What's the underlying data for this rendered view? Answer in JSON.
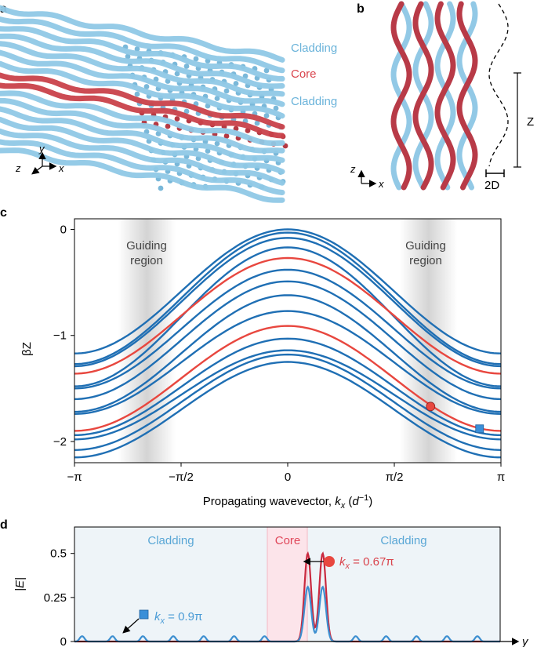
{
  "panel_a": {
    "label": "a",
    "layers": [
      "Cladding",
      "Core",
      "Cladding"
    ],
    "axes": {
      "y": "y",
      "z": "z",
      "x": "x"
    }
  },
  "panel_b": {
    "label": "b",
    "period_label": "Z",
    "pitch_label": "2D",
    "axes": {
      "z": "z",
      "x": "x"
    }
  },
  "panel_c": {
    "label": "c",
    "guiding_region_line1": "Guiding",
    "guiding_region_line2": "region"
  },
  "panel_d": {
    "label": "d",
    "region_left": "Cladding",
    "region_core": "Core",
    "region_right": "Cladding",
    "annot_red": "k_x = 0.67π",
    "annot_red_k": "k",
    "annot_red_sub": "x",
    "annot_red_val": " = 0.67π",
    "annot_blue_k": "k",
    "annot_blue_sub": "x",
    "annot_blue_val": " = 0.9π"
  },
  "colors": {
    "blue": "#1f6fb4",
    "red": "#e8473f",
    "cladding": "#7fbfe0",
    "core": "#c9414a"
  },
  "chart_data": [
    {
      "type": "line",
      "panel": "c",
      "title": "",
      "xlabel": "Propagating wavevector, k_x (d^-1)",
      "xlabel_parts": {
        "main": "Propagating wavevector, ",
        "k": "k",
        "sub": "x",
        "paren_open": " (",
        "d": "d",
        "sup": "−1",
        "paren_close": ")"
      },
      "ylabel": "βZ",
      "xlim": [
        -3.14159,
        3.14159
      ],
      "ylim": [
        -2.2,
        0.1
      ],
      "xticks": [
        -3.14159,
        -1.5708,
        0,
        1.5708,
        3.14159
      ],
      "xticklabels": [
        "−π",
        "−π/2",
        "0",
        "π/2",
        "π"
      ],
      "yticks": [
        0,
        -1,
        -2
      ],
      "yticklabels": [
        "0",
        "−1",
        "−2"
      ],
      "guiding_regions": [
        [
          -2.5,
          -1.65
        ],
        [
          1.65,
          2.5
        ]
      ],
      "series": [
        {
          "name": "band",
          "color": "blue",
          "center": 0.0,
          "edge": -1.17
        },
        {
          "name": "band",
          "color": "blue",
          "center": -0.03,
          "edge": -1.27
        },
        {
          "name": "band",
          "color": "blue",
          "center": -0.08,
          "edge": -1.29
        },
        {
          "name": "band",
          "color": "blue",
          "center": -0.17,
          "edge": -1.48
        },
        {
          "name": "core",
          "color": "red",
          "center": -0.27,
          "edge": -1.36
        },
        {
          "name": "band",
          "color": "blue",
          "center": -0.38,
          "edge": -1.5
        },
        {
          "name": "band",
          "color": "blue",
          "center": -0.49,
          "edge": -1.6
        },
        {
          "name": "band",
          "color": "blue",
          "center": -0.62,
          "edge": -1.72
        },
        {
          "name": "band",
          "color": "blue",
          "center": -0.77,
          "edge": -1.74
        },
        {
          "name": "core",
          "color": "red",
          "center": -0.91,
          "edge": -1.9
        },
        {
          "name": "band",
          "color": "blue",
          "center": -1.03,
          "edge": -1.94
        },
        {
          "name": "band",
          "color": "blue",
          "center": -1.14,
          "edge": -1.98
        },
        {
          "name": "band",
          "color": "blue",
          "center": -1.18,
          "edge": -2.08
        },
        {
          "name": "band",
          "color": "blue",
          "center": -1.25,
          "edge": -2.15
        }
      ],
      "markers": [
        {
          "shape": "circle",
          "color": "red",
          "x": 2.105,
          "y": -1.67
        },
        {
          "shape": "square",
          "color": "blue",
          "x": 2.827,
          "y": -1.88
        }
      ]
    },
    {
      "type": "line",
      "panel": "d",
      "xlabel": "y",
      "ylabel": "|E|",
      "ylim": [
        0,
        0.65
      ],
      "yticks": [
        0,
        0.25,
        0.5
      ],
      "yticklabels": [
        "0",
        "0.25",
        "0.5"
      ],
      "core_span": [
        0.505,
        0.6
      ],
      "series": [
        {
          "name": "k_x = 0.67π",
          "color": "red",
          "peaks": [
            [
              0.548,
              0.5
            ],
            [
              0.583,
              0.5
            ]
          ]
        },
        {
          "name": "k_x = 0.9π",
          "color": "blue",
          "peaks": [
            [
              0.548,
              0.31
            ],
            [
              0.583,
              0.31
            ]
          ],
          "ripple_amplitude": 0.03
        }
      ]
    }
  ]
}
